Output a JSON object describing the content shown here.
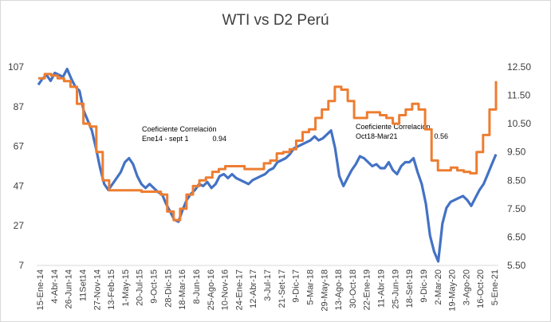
{
  "chart_data": {
    "type": "line",
    "title": "WTI vs D2 Perú",
    "y_left": {
      "ticks": [
        "107",
        "87",
        "67",
        "47",
        "27",
        "7"
      ],
      "range": [
        7,
        107
      ]
    },
    "y_right": {
      "ticks": [
        "12.50",
        "11.50",
        "10.50",
        "9.50",
        "8.50",
        "7.50",
        "6.50",
        "5.50"
      ],
      "range": [
        5.5,
        12.5
      ]
    },
    "x_ticks": [
      "15-Ene-14",
      "4-Abr-14",
      "26-Jun-14",
      "11Set14",
      "27-Nov-14",
      "13-Feb-15",
      "1-May-15",
      "20-Jul-15",
      "9-Oct-15",
      "28-Dic-15",
      "18-Mar-16",
      "8-Jun-16",
      "25-Ago-16",
      "10-Nov-16",
      "24-Ene-17",
      "12-Abr-17",
      "3-Jul-17",
      "21-Set-17",
      "9-Dic-17",
      "5-Mar-18",
      "29-May-18",
      "13-Ago-18",
      "30-Oct-18",
      "22-Ene-19",
      "11-Abr-19",
      "25-Jun-19",
      "18-Set-19",
      "9-Dic-19",
      "2-Mar-20",
      "19-May-20",
      "3-Ago-20",
      "16-Oct-20",
      "5-Ene-21"
    ],
    "series": [
      {
        "color": "#4472c4",
        "axis": "left",
        "values": [
          98,
          101,
          103,
          100,
          104,
          103,
          102,
          106,
          101,
          97,
          95,
          85,
          80,
          75,
          66,
          56,
          48,
          45,
          48,
          51,
          54,
          59,
          61,
          58,
          52,
          48,
          46,
          48,
          46,
          44,
          43,
          38,
          34,
          30,
          29,
          35,
          40,
          43,
          45,
          48,
          47,
          49,
          46,
          48,
          52,
          53,
          51,
          53,
          51,
          50,
          49,
          48,
          50,
          51,
          52,
          53,
          55,
          56,
          59,
          60,
          61,
          63,
          66,
          67,
          68,
          69,
          70,
          72,
          70,
          71,
          73,
          75,
          66,
          52,
          47,
          51,
          55,
          58,
          62,
          61,
          59,
          57,
          58,
          56,
          56,
          59,
          55,
          53,
          57,
          59,
          59,
          61,
          54,
          48,
          38,
          22,
          14,
          9,
          28,
          36,
          39,
          40,
          41,
          42,
          40,
          37,
          41,
          45,
          48,
          53,
          58,
          63
        ]
      },
      {
        "color": "#ed7d31",
        "axis": "right",
        "values": [
          12.1,
          12.25,
          12.2,
          12.1,
          12.0,
          11.8,
          11.2,
          10.5,
          10.4,
          9.5,
          8.5,
          8.15,
          8.15,
          8.15,
          8.15,
          8.15,
          8.1,
          8.1,
          8.1,
          8.0,
          7.4,
          7.1,
          7.5,
          8.0,
          8.3,
          8.5,
          8.6,
          8.8,
          8.9,
          9.0,
          9.0,
          9.0,
          8.9,
          8.9,
          8.9,
          9.1,
          9.2,
          9.45,
          9.5,
          9.6,
          9.9,
          10.2,
          10.3,
          10.7,
          11.0,
          11.3,
          11.8,
          11.7,
          11.3,
          10.7,
          10.7,
          10.9,
          10.9,
          10.8,
          10.7,
          10.5,
          10.8,
          11.0,
          11.2,
          11.0,
          10.3,
          9.2,
          8.85,
          8.85,
          8.95,
          8.85,
          8.8,
          8.75,
          9.5,
          10.1,
          11.0,
          12.0
        ]
      }
    ],
    "annotations": [
      {
        "line1": "Coeficiente Correlación",
        "line2": "Ene14 - sept 1",
        "value": "0.94"
      },
      {
        "line1": "Coeficiente Correlación",
        "line2": "Oct18-Mar21",
        "value": "0.56"
      }
    ],
    "grid": false,
    "legend": "none"
  }
}
